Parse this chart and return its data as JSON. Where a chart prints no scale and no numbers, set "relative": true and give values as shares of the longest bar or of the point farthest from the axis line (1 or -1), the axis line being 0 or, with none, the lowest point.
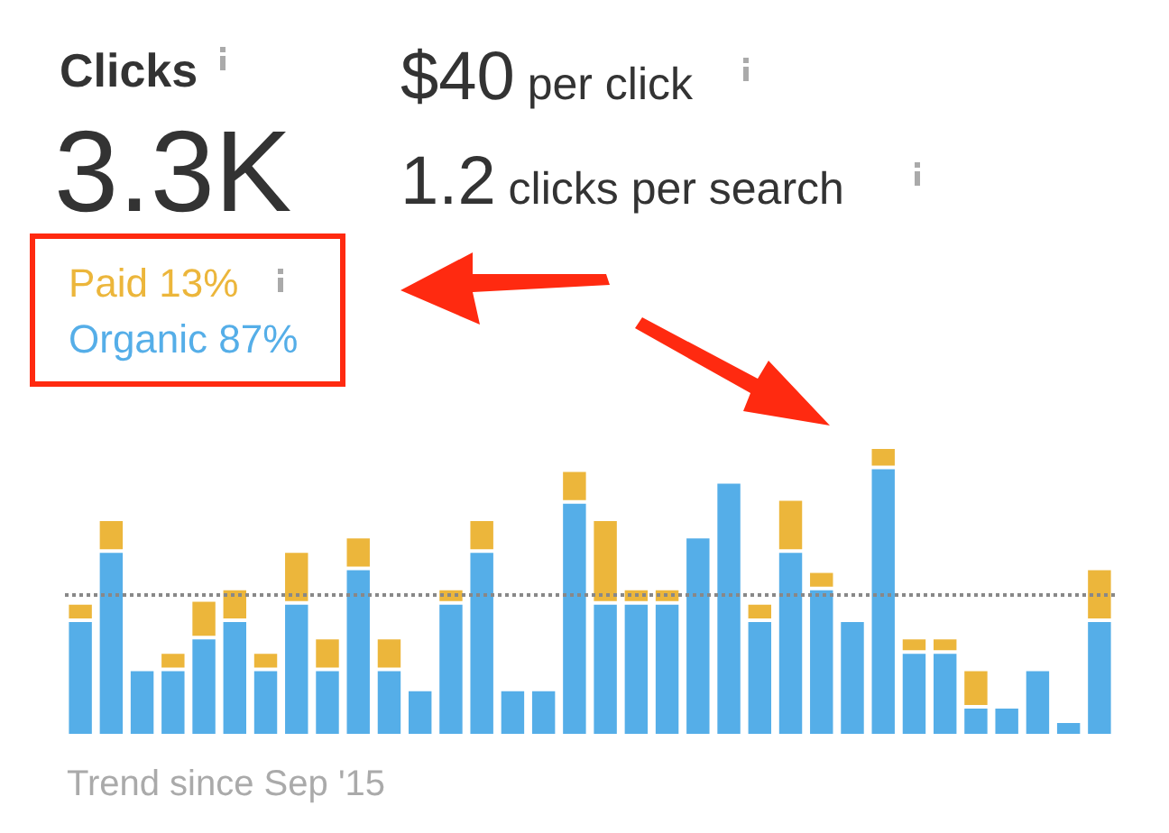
{
  "chart_data": {
    "type": "bar",
    "title": "Clicks",
    "stacked": true,
    "relative": true,
    "legend": "top left",
    "categories": [
      null,
      null,
      null,
      null,
      null,
      null,
      null,
      null,
      null,
      null,
      null,
      null,
      null,
      null,
      null,
      null,
      null,
      null,
      null,
      null,
      null,
      null,
      null,
      null,
      null,
      null,
      null,
      null,
      null,
      null,
      null,
      null,
      null,
      null
    ],
    "series": [
      {
        "name": "Organic 87%",
        "color": "#55aee8",
        "values": [
          0.4,
          0.64,
          0.23,
          0.23,
          0.34,
          0.4,
          0.23,
          0.46,
          0.23,
          0.58,
          0.23,
          0.16,
          0.46,
          0.64,
          0.16,
          0.16,
          0.81,
          0.46,
          0.46,
          0.46,
          0.69,
          0.88,
          0.4,
          0.64,
          0.51,
          0.4,
          0.93,
          0.29,
          0.29,
          0.1,
          0.1,
          0.23,
          0.05,
          0.4
        ]
      },
      {
        "name": "Paid 13%",
        "color": "#ecb63b",
        "values": [
          0.06,
          0.11,
          null,
          0.06,
          0.13,
          0.11,
          0.06,
          0.18,
          0.11,
          0.11,
          0.11,
          null,
          0.05,
          0.11,
          null,
          null,
          0.11,
          0.29,
          0.05,
          0.05,
          null,
          null,
          0.06,
          0.18,
          0.06,
          null,
          0.07,
          0.05,
          0.05,
          0.13,
          null,
          null,
          null,
          0.18
        ]
      }
    ],
    "ref_lines": [
      {
        "axis": "y",
        "value": 0.49,
        "line_style": "dotted",
        "color": "#888888"
      }
    ],
    "annotations": [
      "3.3K",
      "$40 per click",
      "1.2 clicks per search",
      "Trend since Sep '15"
    ]
  }
}
